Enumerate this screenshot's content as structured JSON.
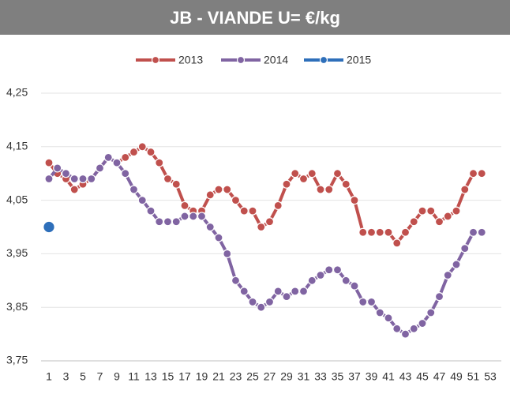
{
  "chart_data": {
    "type": "line",
    "title": "JB - VIANDE U=  €/kg",
    "categories": [
      1,
      null,
      3,
      null,
      5,
      null,
      7,
      null,
      9,
      null,
      11,
      null,
      13,
      null,
      15,
      null,
      17,
      null,
      19,
      null,
      21,
      null,
      23,
      null,
      25,
      null,
      27,
      null,
      29,
      null,
      31,
      null,
      33,
      null,
      35,
      null,
      37,
      null,
      39,
      null,
      41,
      null,
      43,
      null,
      45,
      null,
      47,
      null,
      49,
      null,
      51,
      null,
      53
    ],
    "series": [
      {
        "name": "2013",
        "color": "#c0504d",
        "values": [
          4.12,
          4.1,
          4.09,
          4.07,
          4.08,
          4.09,
          4.11,
          4.13,
          4.12,
          4.13,
          4.14,
          4.15,
          4.14,
          4.12,
          4.09,
          4.08,
          4.04,
          4.03,
          4.03,
          4.06,
          4.07,
          4.07,
          4.05,
          4.03,
          4.03,
          4.0,
          4.01,
          4.04,
          4.08,
          4.1,
          4.09,
          4.1,
          4.07,
          4.07,
          4.1,
          4.08,
          4.05,
          3.99,
          3.99,
          3.99,
          3.99,
          3.97,
          3.99,
          4.01,
          4.03,
          4.03,
          4.01,
          4.02,
          4.03,
          4.07,
          4.1,
          4.1,
          null
        ]
      },
      {
        "name": "2014",
        "color": "#8064a2",
        "values": [
          4.09,
          4.11,
          4.1,
          4.09,
          4.09,
          4.09,
          4.11,
          4.13,
          4.12,
          4.1,
          4.07,
          4.05,
          4.03,
          4.01,
          4.01,
          4.01,
          4.02,
          4.02,
          4.02,
          4.0,
          3.98,
          3.95,
          3.9,
          3.88,
          3.86,
          3.85,
          3.86,
          3.88,
          3.87,
          3.88,
          3.88,
          3.9,
          3.91,
          3.92,
          3.92,
          3.9,
          3.89,
          3.86,
          3.86,
          3.84,
          3.83,
          3.81,
          3.8,
          3.81,
          3.82,
          3.84,
          3.87,
          3.91,
          3.93,
          3.96,
          3.99,
          3.99,
          null
        ]
      },
      {
        "name": "2015",
        "color": "#2e6fba",
        "values": [
          4.0,
          null,
          null,
          null,
          null,
          null,
          null,
          null,
          null,
          null,
          null,
          null,
          null,
          null,
          null,
          null,
          null,
          null,
          null,
          null,
          null,
          null,
          null,
          null,
          null,
          null,
          null,
          null,
          null,
          null,
          null,
          null,
          null,
          null,
          null,
          null,
          null,
          null,
          null,
          null,
          null,
          null,
          null,
          null,
          null,
          null,
          null,
          null,
          null,
          null,
          null,
          null,
          null
        ]
      }
    ],
    "ylim": [
      3.75,
      4.25
    ],
    "yticks": [
      {
        "value": 3.75,
        "label": "3,75"
      },
      {
        "value": 3.85,
        "label": "3,85"
      },
      {
        "value": 3.95,
        "label": "3,95"
      },
      {
        "value": 4.05,
        "label": "4,05"
      },
      {
        "value": 4.15,
        "label": "4,15"
      },
      {
        "value": 4.25,
        "label": "4,25"
      }
    ],
    "grid": true,
    "legend": "top"
  }
}
